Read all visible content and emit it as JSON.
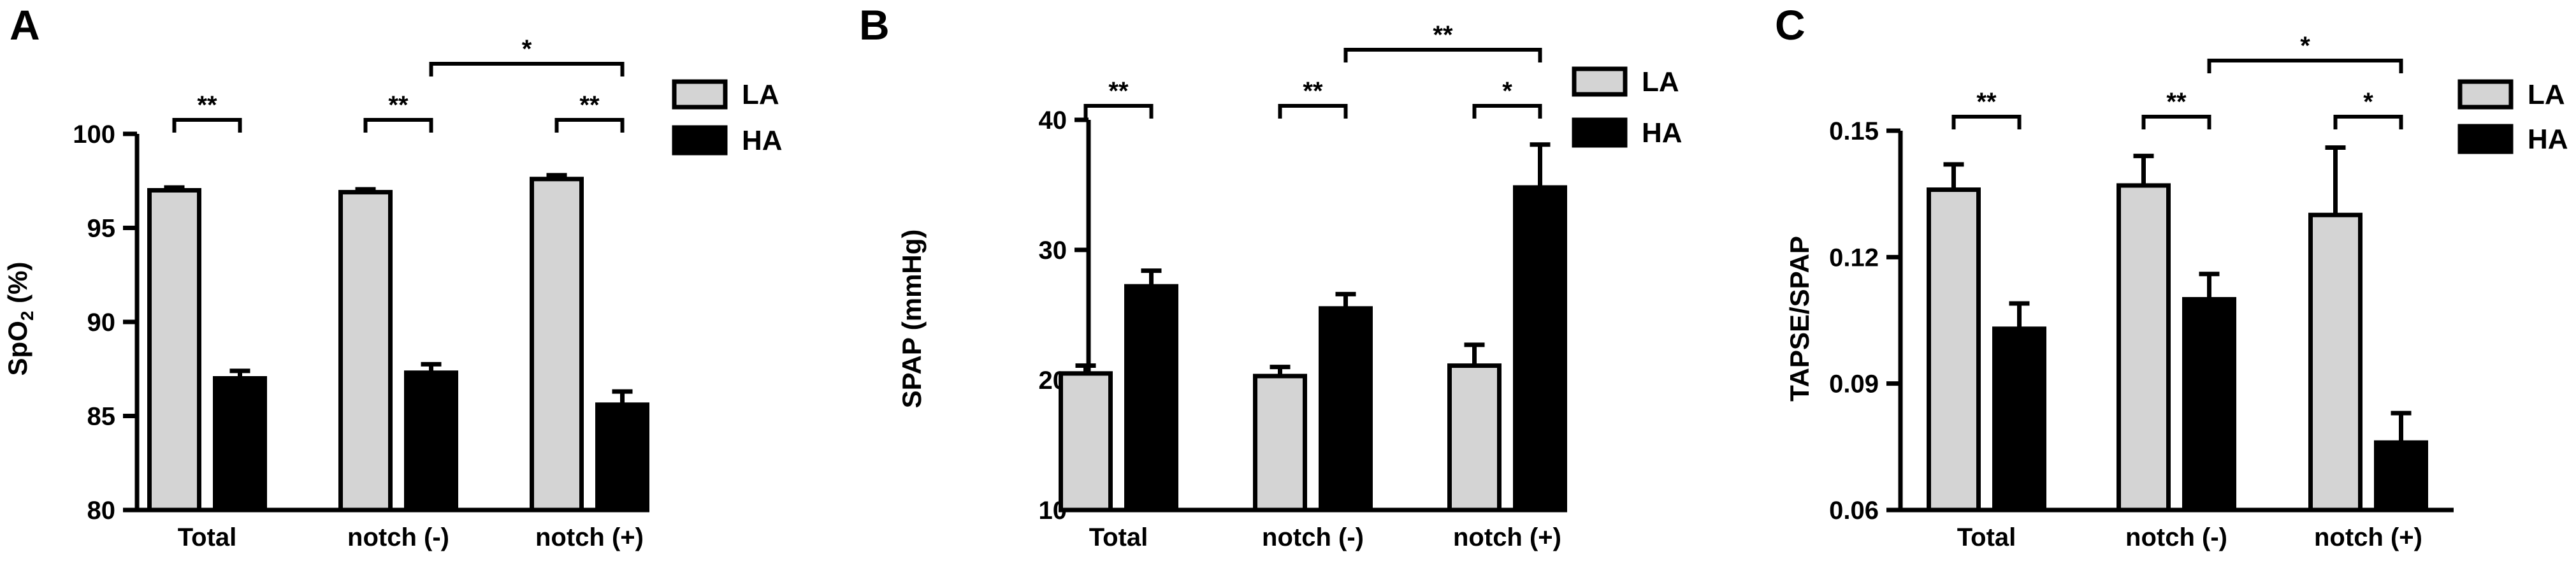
{
  "chart_data": [
    {
      "type": "bar",
      "panel": "A",
      "title": "",
      "xlabel": "",
      "ylabel": "SpO2 (%)",
      "ylim": [
        80,
        100
      ],
      "yticks": [
        80,
        85,
        90,
        95,
        100
      ],
      "categories": [
        "Total",
        "notch (-)",
        "notch (+)"
      ],
      "series": [
        {
          "name": "LA",
          "color": "#d4d4d4",
          "values": [
            97.0,
            96.9,
            97.6
          ],
          "errors": [
            0.15,
            0.15,
            0.2
          ]
        },
        {
          "name": "HA",
          "color": "#000000",
          "values": [
            87.0,
            87.3,
            85.6
          ],
          "errors": [
            0.4,
            0.45,
            0.7
          ]
        }
      ],
      "annotations": [
        {
          "label": "**",
          "type": "within",
          "category": 0
        },
        {
          "label": "**",
          "type": "within",
          "category": 1
        },
        {
          "label": "**",
          "type": "within",
          "category": 2
        },
        {
          "label": "*",
          "type": "between",
          "from_category": 1,
          "to_category": 2,
          "series": "HA"
        }
      ],
      "legend": "top-right",
      "grid": false
    },
    {
      "type": "bar",
      "panel": "B",
      "title": "",
      "xlabel": "",
      "ylabel": "SPAP (mmHg)",
      "ylim": [
        10,
        40
      ],
      "yticks": [
        10,
        20,
        30,
        40
      ],
      "categories": [
        "Total",
        "notch (-)",
        "notch (+)"
      ],
      "series": [
        {
          "name": "LA",
          "color": "#d4d4d4",
          "values": [
            20.5,
            20.3,
            21.1
          ],
          "errors": [
            0.6,
            0.7,
            1.6
          ]
        },
        {
          "name": "HA",
          "color": "#000000",
          "values": [
            27.2,
            25.5,
            34.8
          ],
          "errors": [
            1.2,
            1.1,
            3.3
          ]
        }
      ],
      "annotations": [
        {
          "label": "**",
          "type": "within",
          "category": 0
        },
        {
          "label": "**",
          "type": "within",
          "category": 1
        },
        {
          "label": "*",
          "type": "within",
          "category": 2
        },
        {
          "label": "**",
          "type": "between",
          "from_category": 1,
          "to_category": 2,
          "series": "HA"
        }
      ],
      "legend": "top-right",
      "grid": false
    },
    {
      "type": "bar",
      "panel": "C",
      "title": "",
      "xlabel": "",
      "ylabel": "TAPSE/SPAP",
      "ylim": [
        0.06,
        0.15
      ],
      "yticks": [
        "0.06",
        "0.09",
        "0.12",
        "0.15"
      ],
      "categories": [
        "Total",
        "notch (-)",
        "notch (+)"
      ],
      "series": [
        {
          "name": "LA",
          "color": "#d4d4d4",
          "values": [
            0.136,
            0.137,
            0.13
          ],
          "errors": [
            0.006,
            0.007,
            0.016
          ]
        },
        {
          "name": "HA",
          "color": "#000000",
          "values": [
            0.103,
            0.11,
            0.076
          ],
          "errors": [
            0.006,
            0.006,
            0.007
          ]
        }
      ],
      "annotations": [
        {
          "label": "**",
          "type": "within",
          "category": 0
        },
        {
          "label": "**",
          "type": "within",
          "category": 1
        },
        {
          "label": "*",
          "type": "within",
          "category": 2
        },
        {
          "label": "*",
          "type": "between",
          "from_category": 1,
          "to_category": 2,
          "series": "HA"
        }
      ],
      "legend": "top-right",
      "grid": false
    }
  ]
}
